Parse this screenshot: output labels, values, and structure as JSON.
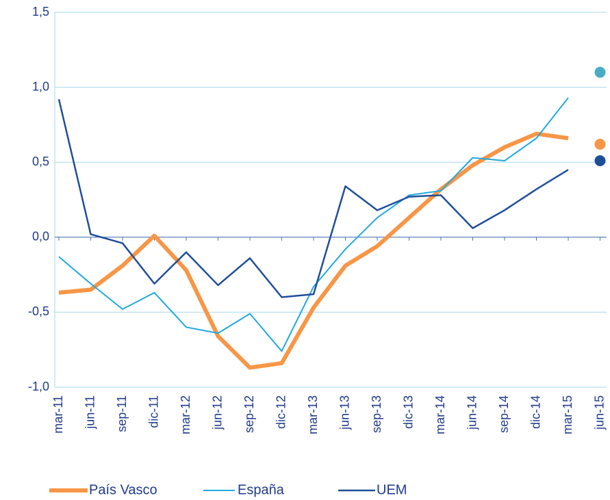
{
  "chart_data": {
    "type": "line",
    "categories": [
      "mar-11",
      "jun-11",
      "sep-11",
      "dic-11",
      "mar-12",
      "jun-12",
      "sep-12",
      "dic-12",
      "mar-13",
      "jun-13",
      "sep-13",
      "dic-13",
      "mar-14",
      "jun-14",
      "sep-14",
      "dic-14",
      "mar-15",
      "jun-15"
    ],
    "series": [
      {
        "name": "País Vasco",
        "color": "#f79646",
        "width": 6,
        "forecast": 0.62,
        "forecast_color": "#f79646",
        "values": [
          -0.37,
          -0.35,
          -0.19,
          0.01,
          -0.22,
          -0.66,
          -0.87,
          -0.84,
          -0.47,
          -0.19,
          -0.06,
          0.13,
          0.32,
          0.48,
          0.6,
          0.69,
          0.66,
          null
        ]
      },
      {
        "name": "España",
        "color": "#1fa8e0",
        "width": 2,
        "forecast": 1.1,
        "forecast_color": "#4bacc6",
        "values": [
          -0.13,
          -0.31,
          -0.48,
          -0.37,
          -0.6,
          -0.64,
          -0.51,
          -0.76,
          -0.33,
          -0.08,
          0.13,
          0.28,
          0.31,
          0.53,
          0.51,
          0.66,
          0.93,
          null
        ]
      },
      {
        "name": "UEM",
        "color": "#1f4e99",
        "width": 2.5,
        "forecast": 0.51,
        "forecast_color": "#1f4e99",
        "values": [
          0.92,
          0.02,
          -0.04,
          -0.31,
          -0.1,
          -0.32,
          -0.14,
          -0.4,
          -0.38,
          0.34,
          0.18,
          0.27,
          0.28,
          0.06,
          0.18,
          0.32,
          0.45,
          null
        ]
      }
    ],
    "ylim": [
      -1.0,
      1.5
    ],
    "yticks": [
      {
        "value": -1.0,
        "label": "-1,0"
      },
      {
        "value": -0.5,
        "label": "-0,5"
      },
      {
        "value": 0,
        "label": "0,0"
      },
      {
        "value": 0.5,
        "label": "0,5"
      },
      {
        "value": 1.0,
        "label": "1,0"
      },
      {
        "value": 1.5,
        "label": "1,5"
      }
    ],
    "grid": true,
    "legend": "bottom"
  }
}
